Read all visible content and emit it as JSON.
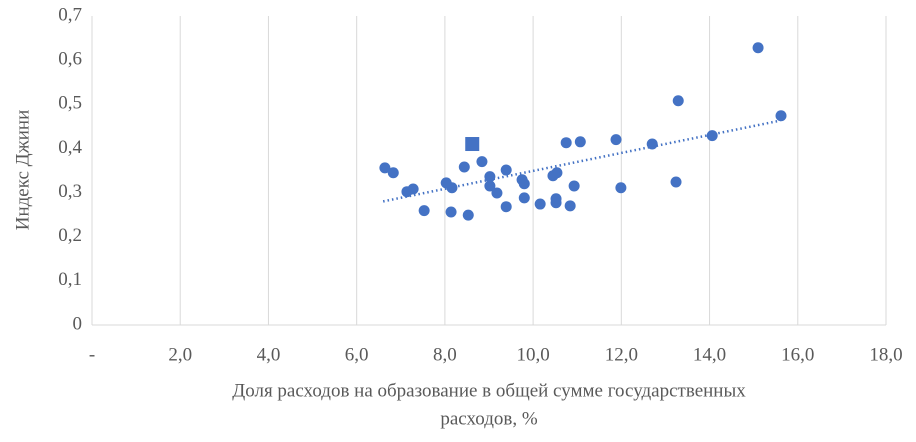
{
  "chart_data": {
    "type": "scatter",
    "ylabel": "Индекс Джини",
    "xlabel": [
      "Доля расходов на образование в общей сумме государственных",
      "расходов, %"
    ],
    "xlim": [
      0,
      18
    ],
    "ylim": [
      0,
      0.7
    ],
    "xticks": [
      {
        "value": 0,
        "label": "-"
      },
      {
        "value": 2,
        "label": "2,0"
      },
      {
        "value": 4,
        "label": "4,0"
      },
      {
        "value": 6,
        "label": "6,0"
      },
      {
        "value": 8,
        "label": "8,0"
      },
      {
        "value": 10,
        "label": "10,0"
      },
      {
        "value": 12,
        "label": "12,0"
      },
      {
        "value": 14,
        "label": "14,0"
      },
      {
        "value": 16,
        "label": "16,0"
      },
      {
        "value": 18,
        "label": "18,0"
      }
    ],
    "yticks": [
      0,
      {
        "value": 0.1,
        "label": "0,1"
      },
      {
        "value": 0.2,
        "label": "0,2"
      },
      {
        "value": 0.3,
        "label": "0,3"
      },
      {
        "value": 0.4,
        "label": "0,4"
      },
      {
        "value": 0.5,
        "label": "0,5"
      },
      {
        "value": 0.6,
        "label": "0,6"
      },
      {
        "value": 0.7,
        "label": "0,7"
      }
    ],
    "grid": "x",
    "series": [
      {
        "color": "#4472c4",
        "marker": "circle",
        "x": [
          6.64,
          6.83,
          7.14,
          7.28,
          7.53,
          8.03,
          8.16,
          8.14,
          8.44,
          8.53,
          8.84,
          9.02,
          9.02,
          9.18,
          9.39,
          9.39,
          9.75,
          9.8,
          9.8,
          10.16,
          10.45,
          10.54,
          10.52,
          10.52,
          10.75,
          10.84,
          10.93,
          11.07,
          11.88,
          11.99,
          12.7,
          13.24,
          13.29,
          14.06,
          15.1,
          15.62
        ],
        "y": [
          0.356,
          0.345,
          0.302,
          0.308,
          0.259,
          0.322,
          0.311,
          0.256,
          0.358,
          0.249,
          0.37,
          0.336,
          0.315,
          0.299,
          0.351,
          0.268,
          0.329,
          0.32,
          0.288,
          0.274,
          0.338,
          0.345,
          0.286,
          0.277,
          0.413,
          0.27,
          0.315,
          0.415,
          0.42,
          0.311,
          0.41,
          0.324,
          0.508,
          0.429,
          0.628,
          0.474
        ]
      },
      {
        "color": "#4472c4",
        "marker": "square",
        "x": [
          8.62
        ],
        "y": [
          0.41
        ]
      }
    ],
    "trendline": {
      "color": "#4472c4",
      "x": [
        6.6,
        15.6
      ],
      "y": [
        0.28,
        0.463
      ]
    }
  }
}
